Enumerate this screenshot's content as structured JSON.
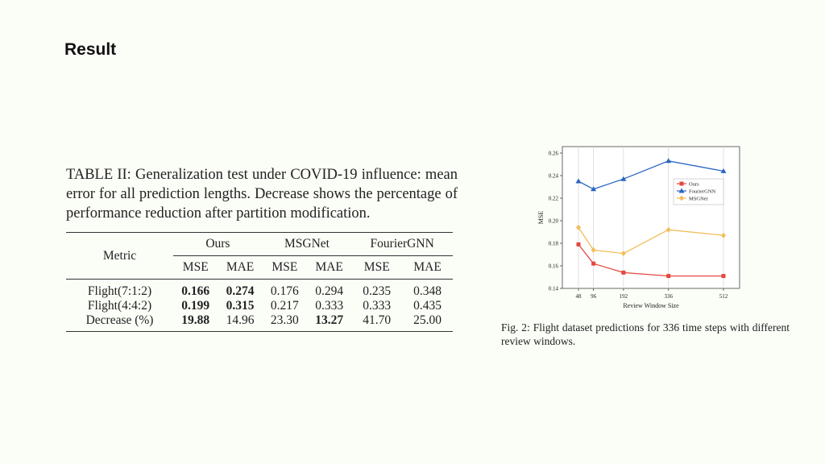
{
  "slide": {
    "title": "Result"
  },
  "table": {
    "caption": "TABLE II: Generalization test under COVID-19 influence: mean error for all prediction lengths. Decrease shows the percentage of performance reduction after partition modification.",
    "metric_header": "Metric",
    "groups": [
      "Ours",
      "MSGNet",
      "FourierGNN"
    ],
    "subheaders": [
      "MSE",
      "MAE",
      "MSE",
      "MAE",
      "MSE",
      "MAE"
    ],
    "rows": [
      {
        "label": "Flight(7:1:2)",
        "cells": [
          "0.166",
          "0.274",
          "0.176",
          "0.294",
          "0.235",
          "0.348"
        ]
      },
      {
        "label": "Flight(4:4:2)",
        "cells": [
          "0.199",
          "0.315",
          "0.217",
          "0.333",
          "0.333",
          "0.435"
        ]
      },
      {
        "label": "Decrease (%)",
        "cells": [
          "19.88",
          "14.96",
          "23.30",
          "13.27",
          "41.70",
          "25.00"
        ]
      }
    ]
  },
  "figure": {
    "caption": "Fig. 2: Flight dataset predictions for 336 time steps with different review windows."
  },
  "chart_data": {
    "type": "line",
    "x": [
      48,
      96,
      192,
      336,
      512
    ],
    "x_ticks": [
      "48",
      "96",
      "192",
      "336",
      "512"
    ],
    "xlabel": "Review Window Size",
    "ylabel": "MSE",
    "ylim": [
      0.14,
      0.26
    ],
    "y_ticks": [
      "0.14",
      "0.16",
      "0.18",
      "0.20",
      "0.22",
      "0.24",
      "0.26"
    ],
    "grid": "vertical",
    "legend_position": "right",
    "series": [
      {
        "name": "Ours",
        "color": "#e4473f",
        "marker": "square",
        "values": [
          0.179,
          0.162,
          0.154,
          0.151,
          0.151
        ]
      },
      {
        "name": "FourierGNN",
        "color": "#2a64c4",
        "marker": "triangle",
        "values": [
          0.235,
          0.228,
          0.237,
          0.253,
          0.244
        ]
      },
      {
        "name": "MSGNet",
        "color": "#f2bd5a",
        "marker": "diamond",
        "values": [
          0.194,
          0.174,
          0.171,
          0.192,
          0.187
        ]
      }
    ]
  }
}
